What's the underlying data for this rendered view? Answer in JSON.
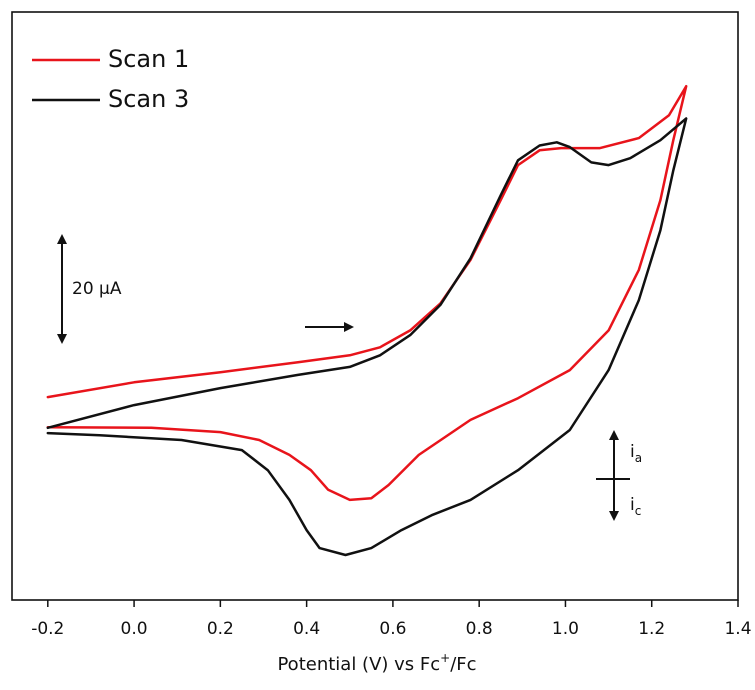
{
  "chart_data": {
    "type": "line",
    "xlabel": {
      "text": "Potential (V) vs Fc",
      "sup": "+",
      "tail": "/Fc"
    },
    "xlim": [
      -0.283,
      1.4
    ],
    "xticks": [
      -0.2,
      {
        "value": 0,
        "label": "0.0"
      },
      0.2,
      0.4,
      0.6,
      0.8,
      {
        "value": 1,
        "label": "1.0"
      },
      1.2,
      1.4
    ],
    "ylim": [
      -35,
      76
    ],
    "legend": "top-left",
    "scale_bar": {
      "value": 20,
      "label": "20 μA"
    },
    "current_labels": {
      "anodic": {
        "main": "i",
        "sub": "a"
      },
      "cathodic": {
        "main": "i",
        "sub": "c"
      }
    },
    "series": [
      {
        "name": "Scan 1",
        "color": "#e8141b",
        "x": [
          -0.2,
          0.0,
          0.2,
          0.38,
          0.5,
          0.57,
          0.64,
          0.71,
          0.78,
          0.85,
          0.89,
          0.94,
          0.99,
          1.08,
          1.17,
          1.24,
          1.28,
          1.25,
          1.22,
          1.17,
          1.1,
          1.01,
          0.89,
          0.78,
          0.66,
          0.59,
          0.55,
          0.5,
          0.45,
          0.41,
          0.36,
          0.29,
          0.2,
          0.04,
          -0.2
        ],
        "values": [
          3.3,
          6.1,
          8.0,
          9.9,
          11.2,
          12.7,
          15.9,
          21.0,
          29.2,
          40.5,
          47.1,
          49.9,
          50.3,
          50.3,
          52.2,
          56.5,
          62.0,
          51.8,
          40.5,
          27.3,
          15.9,
          8.4,
          3.1,
          -1.0,
          -7.6,
          -13.3,
          -15.8,
          -16.1,
          -14.2,
          -10.5,
          -7.6,
          -4.8,
          -3.3,
          -2.5,
          -2.4
        ]
      },
      {
        "name": "Scan 3",
        "color": "#111111",
        "x": [
          -0.2,
          0.0,
          0.2,
          0.38,
          0.5,
          0.57,
          0.64,
          0.71,
          0.78,
          0.85,
          0.89,
          0.94,
          0.98,
          1.01,
          1.06,
          1.1,
          1.15,
          1.22,
          1.28,
          1.25,
          1.22,
          1.17,
          1.1,
          1.01,
          0.89,
          0.78,
          0.69,
          0.62,
          0.55,
          0.49,
          0.43,
          0.4,
          0.36,
          0.31,
          0.25,
          0.11,
          -0.08,
          -0.2
        ],
        "values": [
          -2.5,
          1.8,
          5.0,
          7.5,
          9.0,
          11.2,
          15.0,
          20.7,
          29.5,
          41.4,
          48.0,
          50.8,
          51.4,
          50.5,
          47.6,
          47.1,
          48.4,
          51.8,
          55.9,
          46.1,
          34.8,
          21.6,
          8.4,
          -2.9,
          -10.5,
          -16.1,
          -19.0,
          -21.8,
          -25.2,
          -26.5,
          -25.2,
          -21.8,
          -16.1,
          -10.5,
          -6.7,
          -4.8,
          -3.9,
          -3.5
        ]
      }
    ]
  }
}
